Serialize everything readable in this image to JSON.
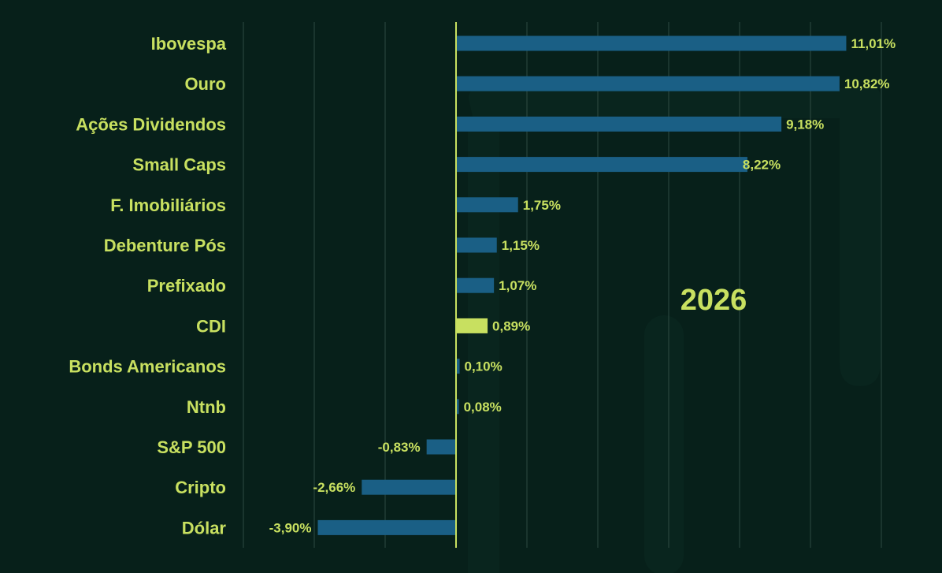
{
  "chart_data": {
    "type": "bar",
    "orientation": "horizontal",
    "annotation": "2026",
    "categories": [
      "Ibovespa",
      "Ouro",
      "Ações Dividendos",
      "Small Caps",
      "F. Imobiliários",
      "Debenture Pós",
      "Prefixado",
      "CDI",
      "Bonds Americanos",
      "Ntnb",
      "S&P 500",
      "Cripto",
      "Dólar"
    ],
    "values": [
      11.01,
      10.82,
      9.18,
      8.22,
      1.75,
      1.15,
      1.07,
      0.89,
      0.1,
      0.08,
      -0.83,
      -2.66,
      -3.9
    ],
    "value_labels": [
      "11,01%",
      "10,82%",
      "9,18%",
      "8,22%",
      "1,75%",
      "1,15%",
      "1,07%",
      "0,89%",
      "0,10%",
      "0,08%",
      "-0,83%",
      "-2,66%",
      "-3,90%"
    ],
    "highlight": "CDI",
    "xlim": [
      -6,
      12
    ],
    "grid": true,
    "legend": "none",
    "colors": {
      "background": "#07201a",
      "bar": "#1a5f85",
      "highlight_bar": "#c8e060",
      "text": "#c8e060",
      "grid": "#2e4a42",
      "zero_line": "#c8e060"
    }
  }
}
